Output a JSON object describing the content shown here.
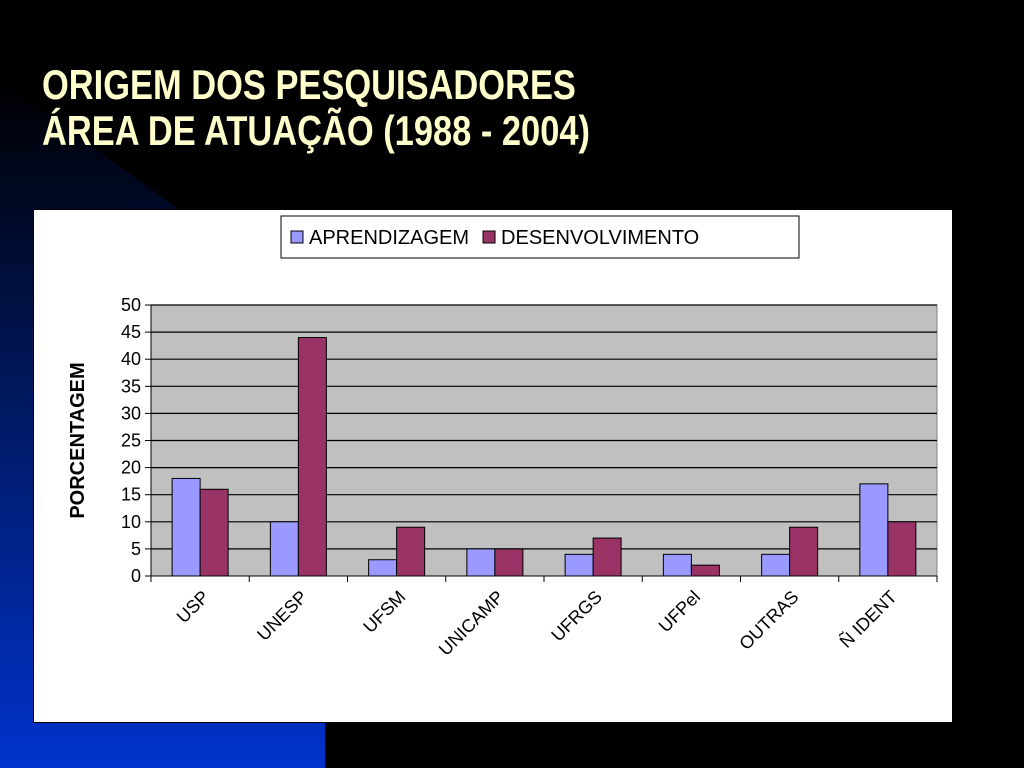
{
  "slide": {
    "title_line1": "ORIGEM DOS PESQUISADORES",
    "title_line2": "ÁREA DE ATUAÇÃO (1988 - 2004)"
  },
  "colors": {
    "background": "#000000",
    "decor_blue": "#0033CC",
    "title": "#FFFFCC",
    "plot_bg": "#C0C0C0"
  },
  "chart_data": {
    "type": "bar",
    "categories": [
      "USP",
      "UNESP",
      "UFSM",
      "UNICAMP",
      "UFRGS",
      "UFPel",
      "OUTRAS",
      "Ñ IDENT"
    ],
    "series": [
      {
        "name": "APRENDIZAGEM",
        "color": "#9999FF",
        "values": [
          18,
          10,
          3,
          5,
          4,
          4,
          4,
          17
        ]
      },
      {
        "name": "DESENVOLVIMENTO",
        "color": "#993366",
        "values": [
          16,
          44,
          9,
          5,
          7,
          2,
          9,
          10
        ]
      }
    ],
    "ylabel": "PORCENTAGEM",
    "xlabel": "",
    "ylim": [
      0,
      50
    ],
    "yticks": [
      "0",
      "5",
      "10",
      "15",
      "20",
      "25",
      "30",
      "35",
      "40",
      "45",
      "50"
    ],
    "grid": true,
    "legend_position": "top"
  }
}
